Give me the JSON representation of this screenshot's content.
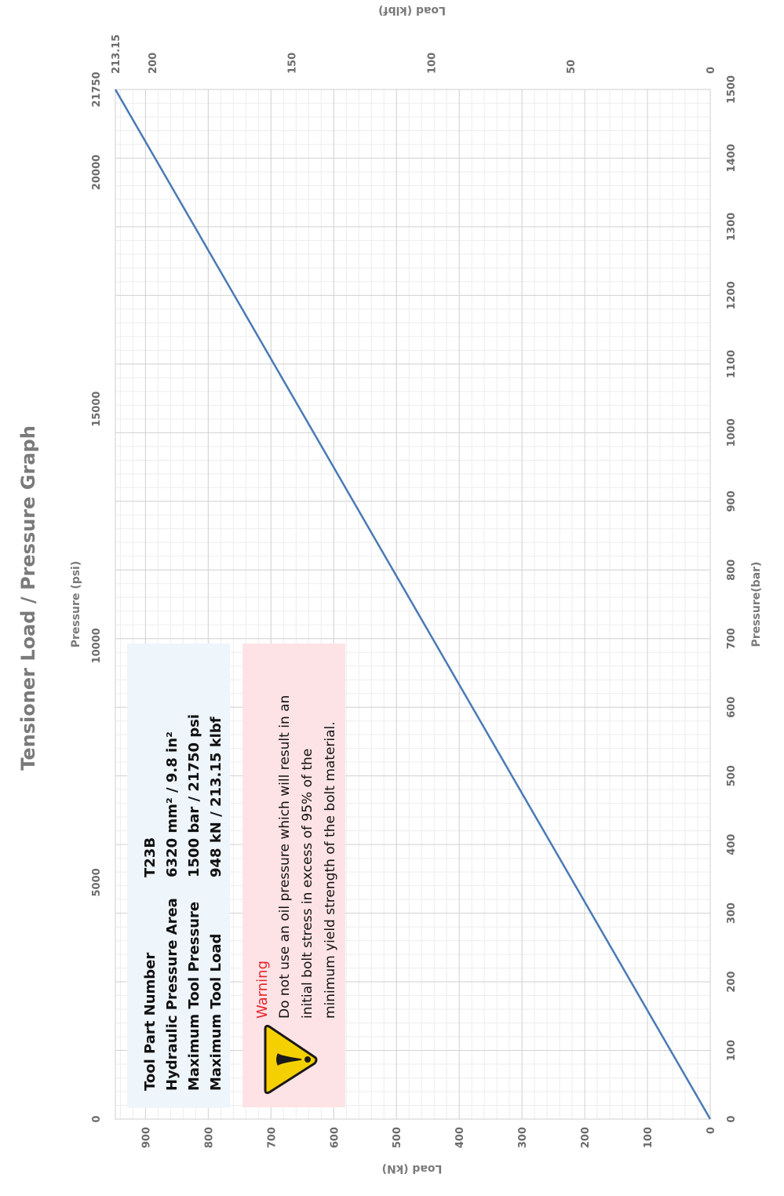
{
  "chart_data": {
    "type": "line",
    "title": "Tensioner Load / Pressure Graph",
    "x_primary": {
      "label": "Pressure(bar)",
      "range": [
        0,
        1500
      ],
      "ticks": [
        0,
        100,
        200,
        300,
        400,
        500,
        600,
        700,
        800,
        900,
        1000,
        1100,
        1200,
        1300,
        1400,
        1500
      ]
    },
    "x_secondary": {
      "label": "Pressure (psi)",
      "range": [
        0,
        21750
      ],
      "ticks": [
        0,
        5000,
        10000,
        15000,
        20000,
        21750
      ]
    },
    "y_primary": {
      "label": "Load (kN)",
      "range": [
        0,
        948
      ],
      "ticks": [
        0,
        100,
        200,
        300,
        400,
        500,
        600,
        700,
        800,
        900
      ]
    },
    "y_secondary": {
      "label": "Load (klbf)",
      "range": [
        0,
        213.15
      ],
      "ticks": [
        0,
        50,
        100,
        150,
        200,
        213.15
      ]
    },
    "series": [
      {
        "x": [
          0,
          1500
        ],
        "y": [
          0,
          948
        ],
        "color": "#4a7ab5"
      }
    ],
    "grid": true,
    "orientation": "rotated-90-ccw"
  },
  "info_box": {
    "rows": [
      {
        "label": "Tool Part Number",
        "value": "T23B"
      },
      {
        "label": "Hydraulic Pressure Area",
        "value": "6320 mm² / 9.8 in²"
      },
      {
        "label": "Maximum Tool Pressure",
        "value": "1500 bar / 21750 psi"
      },
      {
        "label": "Maximum Tool Load",
        "value": "948 kN / 213.15 klbf"
      }
    ],
    "background": "#eef5fb"
  },
  "warning_box": {
    "title": "Warning",
    "lines": [
      "Do not use an oil pressure which will result in an",
      "initial bolt stress in excess of 95% of the",
      "minimum yield strength of the bolt material."
    ],
    "background": "#fde3e6",
    "icon": "warning-triangle-icon",
    "icon_color": "#f5d000"
  }
}
